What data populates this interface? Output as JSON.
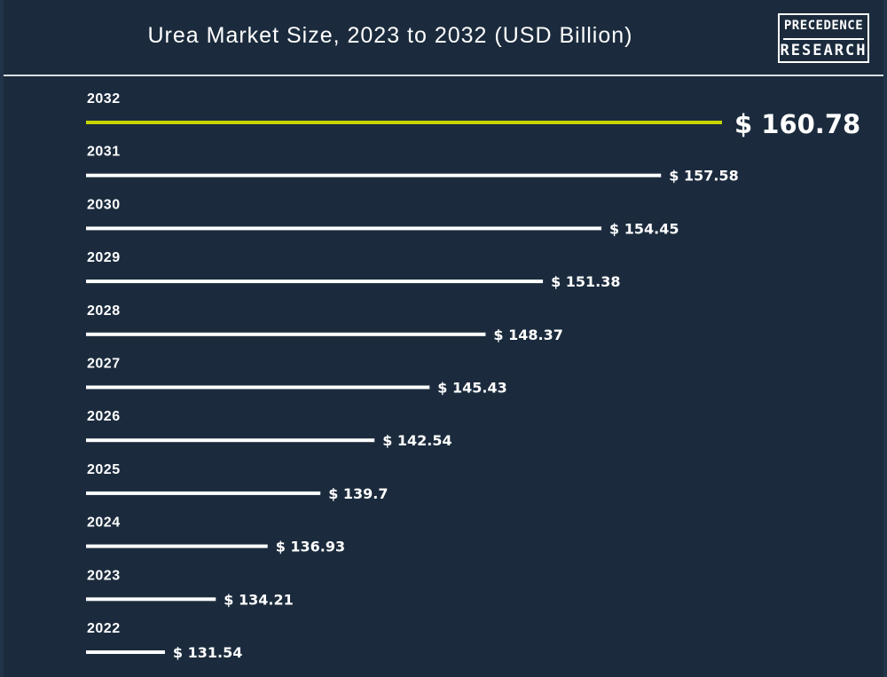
{
  "header": {
    "title": "Urea Market Size, 2023 to 2032 (USD Billion)"
  },
  "logo": {
    "line1": "PRECEDENCE",
    "line2": "RESEARCH"
  },
  "colors": {
    "background": "#1b2b3d",
    "bar": "#ffffff",
    "highlight_bar": "#c7d400",
    "text": "#ffffff"
  },
  "chart_data": {
    "type": "bar",
    "orientation": "horizontal",
    "title": "Urea Market Size, 2023 to 2032 (USD Billion)",
    "xlabel": "",
    "ylabel": "",
    "value_prefix": "$ ",
    "categories": [
      "2032",
      "2031",
      "2030",
      "2029",
      "2028",
      "2027",
      "2026",
      "2025",
      "2024",
      "2023",
      "2022"
    ],
    "values": [
      160.78,
      157.58,
      154.45,
      151.38,
      148.37,
      145.43,
      142.54,
      139.7,
      136.93,
      134.21,
      131.54
    ],
    "value_labels": [
      "$ 160.78",
      "$ 157.58",
      "$ 154.45",
      "$ 151.38",
      "$ 148.37",
      "$ 145.43",
      "$ 142.54",
      "$ 139.7",
      "$ 136.93",
      "$ 134.21",
      "$ 131.54"
    ],
    "highlight_category": "2032",
    "xlim": [
      127.4,
      160.78
    ],
    "grid": false,
    "legend": "none"
  }
}
